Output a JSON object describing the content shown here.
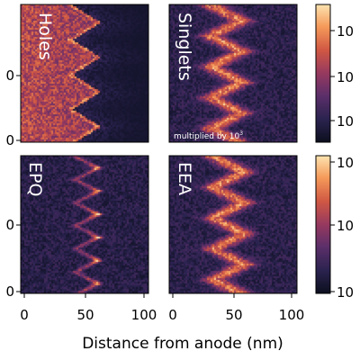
{
  "chart_data": {
    "type": "heatmap",
    "xlabel": "Distance from anode (nm)",
    "x_ticks": [
      "0",
      "50",
      "100"
    ],
    "xlim": [
      0,
      100
    ],
    "y_ticks": [
      "0",
      "0"
    ],
    "colorbar_ticks": [
      "10",
      "10",
      "10"
    ],
    "colormap": [
      "#0c0f1e",
      "#2b2350",
      "#5c2f6a",
      "#96395f",
      "#d05843",
      "#f59a5a",
      "#fde3b0"
    ],
    "panels": [
      {
        "label": "Holes",
        "kind": "holes",
        "note": "",
        "zigzag_x_min": 40,
        "zigzag_x_max": 62,
        "zigzag_peaks": 4
      },
      {
        "label": "Singlets",
        "kind": "band",
        "note": "multiplied by 10",
        "note_superscript": "3",
        "zigzag_x_min": 38,
        "zigzag_x_max": 62,
        "zigzag_peaks": 4.5
      },
      {
        "label": "EPQ",
        "kind": "dots",
        "note": "",
        "zigzag_x_min": 42,
        "zigzag_x_max": 60,
        "zigzag_peaks": 6
      },
      {
        "label": "EEA",
        "kind": "band",
        "note": "",
        "zigzag_x_min": 40,
        "zigzag_x_max": 64,
        "zigzag_peaks": 4.5
      }
    ]
  }
}
